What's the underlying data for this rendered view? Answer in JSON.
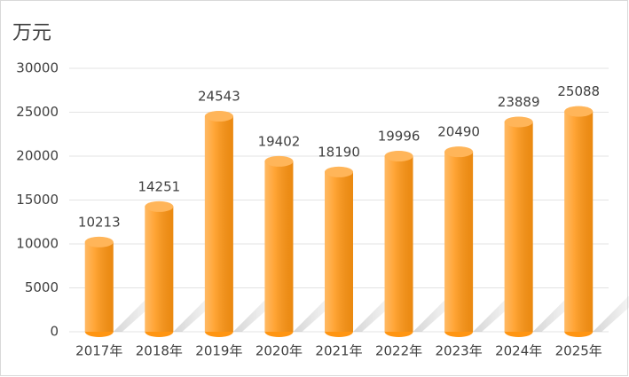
{
  "chart_data": {
    "type": "bar",
    "title": "万元",
    "categories": [
      "2017年",
      "2018年",
      "2019年",
      "2020年",
      "2021年",
      "2022年",
      "2023年",
      "2024年",
      "2025年"
    ],
    "values": [
      10213,
      14251,
      24543,
      19402,
      18190,
      19996,
      20490,
      23889,
      25088
    ],
    "color": "#ff9512",
    "ylim": [
      0,
      30000
    ],
    "yticks": [
      0,
      5000,
      10000,
      15000,
      20000,
      25000,
      30000
    ],
    "grid": true
  }
}
